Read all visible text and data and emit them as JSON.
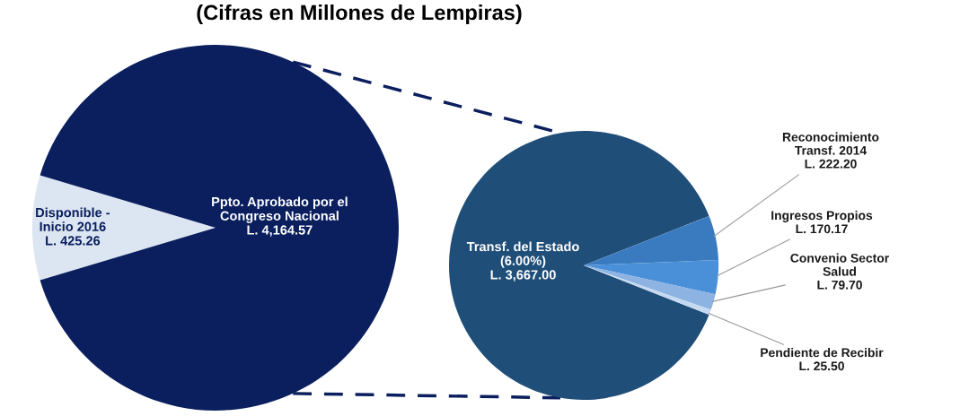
{
  "chart_data": [
    {
      "type": "pie",
      "title": "(Cifras en Millones de Lempiras)",
      "categories": [
        "Disponible -\nInicio 2016",
        "Ppto. Aprobado por el\nCongreso Nacional"
      ],
      "values": [
        425.26,
        4164.57
      ],
      "colors": [
        "#dce6f2",
        "#0b1f5e"
      ],
      "value_labels": [
        "L. 425.26",
        "L. 4,164.57"
      ]
    },
    {
      "type": "pie",
      "categories": [
        "Transf. del Estado\n(6.00%)",
        "Reconocimiento\nTransf. 2014",
        "Ingresos Propios",
        "Convenio Sector\nSalud",
        "Pendiente de Recibir"
      ],
      "values": [
        3667.0,
        222.2,
        170.17,
        79.7,
        25.5
      ],
      "colors": [
        "#1f4e79",
        "#3a7bbf",
        "#4a90d9",
        "#8db3e2",
        "#c5d9f1"
      ],
      "value_labels": [
        "L. 3,667.00",
        "L. 222.20",
        "L. 170.17",
        "L. 79.70",
        "L. 25.50"
      ]
    }
  ]
}
